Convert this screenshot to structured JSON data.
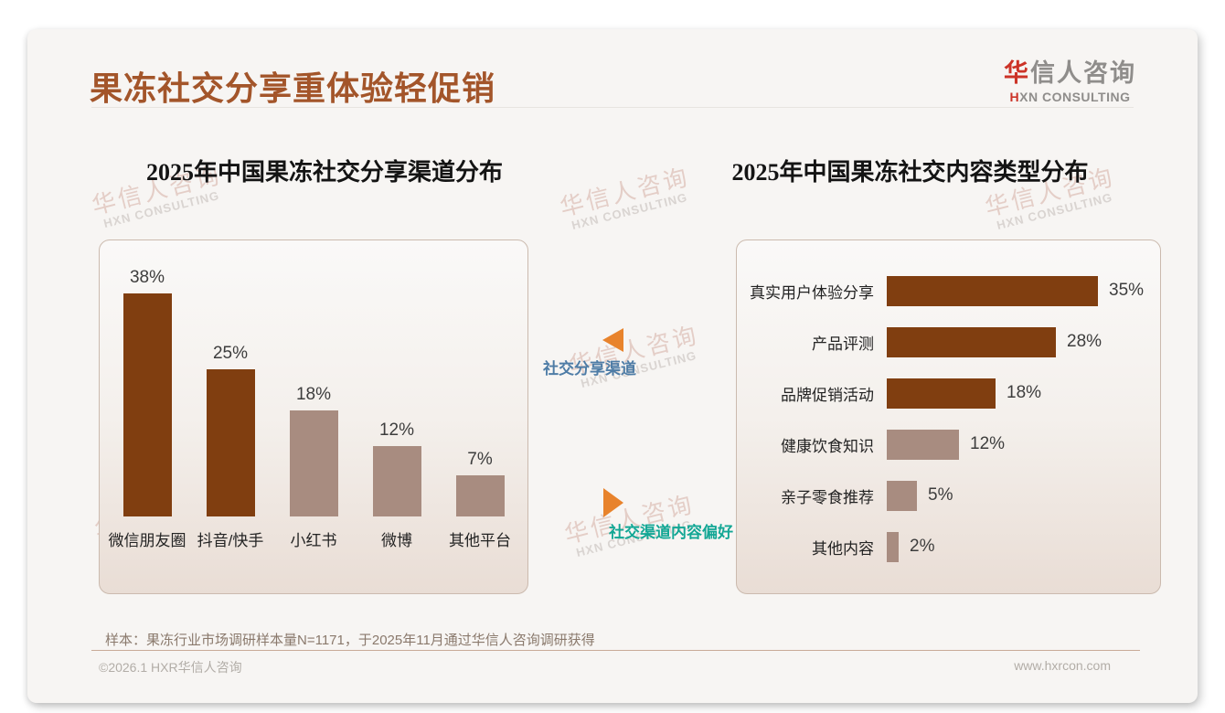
{
  "page": {
    "title": "果冻社交分享重体验轻促销",
    "note": "样本：果冻行业市场调研样本量N=1171，于2025年11月通过华信人咨询调研获得",
    "footer": {
      "left": "©2026.1 HXR华信人咨询",
      "right": "www.hxrcon.com"
    }
  },
  "logo": {
    "cn_first": "华",
    "cn_rest": "信人咨询",
    "en_first": "H",
    "en_rest": "XN CONSULTING",
    "accent_color": "#CC3327",
    "gray_color": "#8F8D8B"
  },
  "watermark": {
    "line1": "华信人咨询",
    "line2": "HXN CONSULTING"
  },
  "middle": {
    "label_top": "社交分享渠道",
    "label_bottom": "社交渠道内容偏好",
    "arrow_color": "#E8832C",
    "label_top_color": "#4E7CA6",
    "label_bottom_color": "#13A795"
  },
  "chart_data": [
    {
      "type": "bar",
      "title": "2025年中国果冻社交分享渠道分布",
      "categories": [
        "微信朋友圈",
        "抖音/快手",
        "小红书",
        "微博",
        "其他平台"
      ],
      "values": [
        38,
        25,
        18,
        12,
        7
      ],
      "unit": "%",
      "colors": [
        "#803E10",
        "#803E10",
        "#A88C80",
        "#A88C80",
        "#A88C80"
      ],
      "ylim": [
        0,
        40
      ],
      "grid": false,
      "value_labels": true,
      "legend": "none"
    },
    {
      "type": "bar-horizontal",
      "title": "2025年中国果冻社交内容类型分布",
      "categories": [
        "真实用户体验分享",
        "产品评测",
        "品牌促销活动",
        "健康饮食知识",
        "亲子零食推荐",
        "其他内容"
      ],
      "values": [
        35,
        28,
        18,
        12,
        5,
        2
      ],
      "unit": "%",
      "colors": [
        "#803E10",
        "#803E10",
        "#803E10",
        "#A88C80",
        "#A88C80",
        "#A88C80"
      ],
      "xlim": [
        0,
        40
      ],
      "grid": false,
      "value_labels": true,
      "legend": "none"
    }
  ]
}
